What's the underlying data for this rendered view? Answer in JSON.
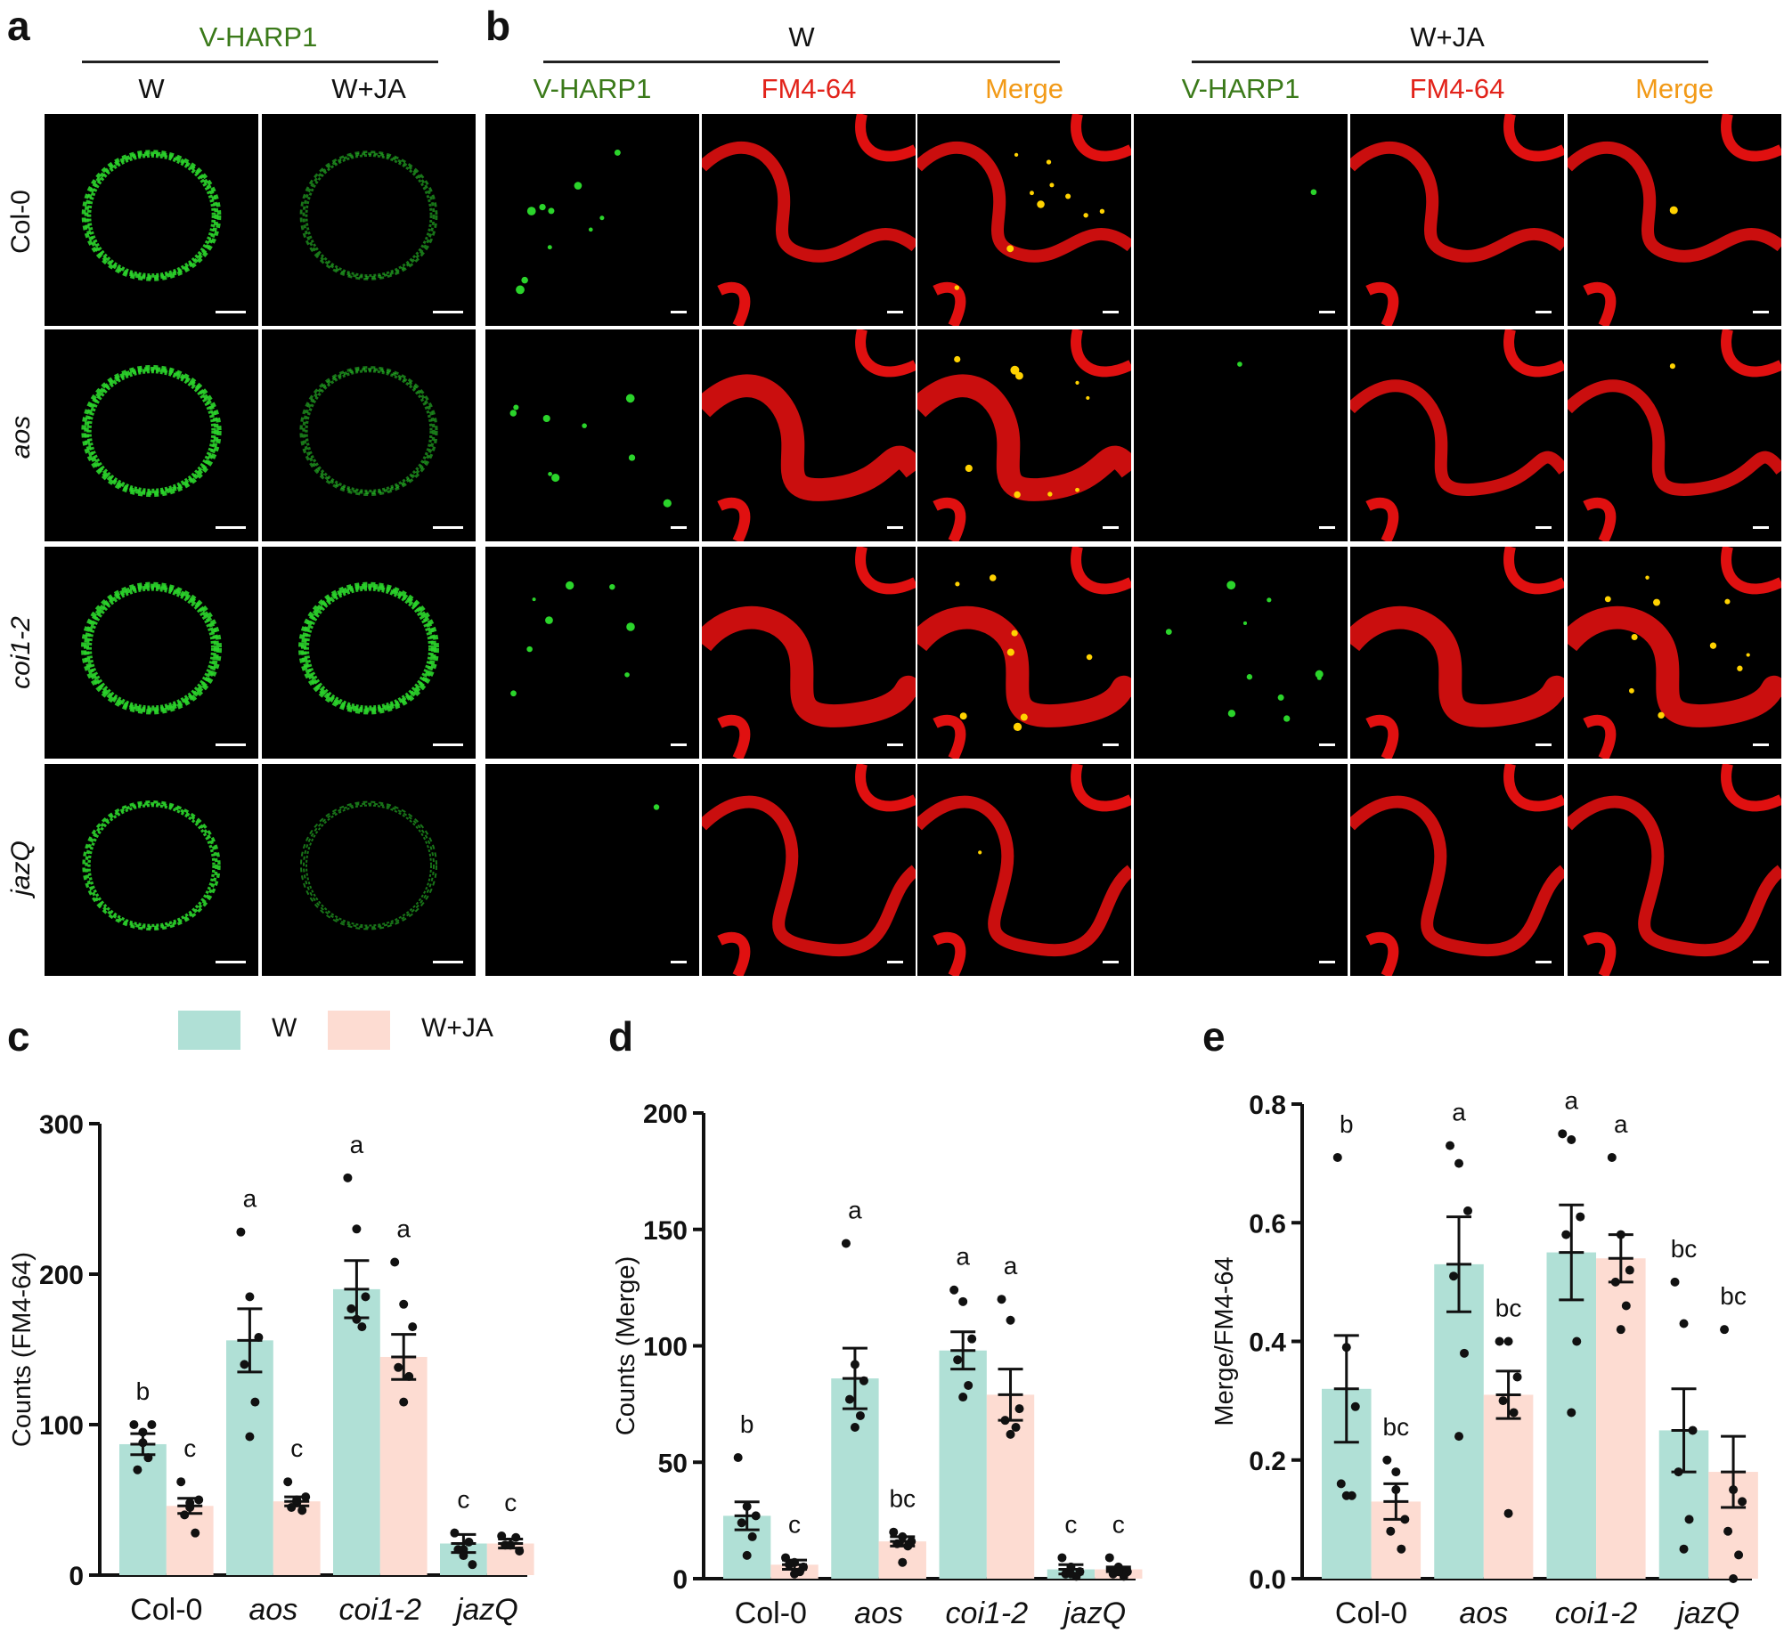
{
  "colors": {
    "green_text": "#3b7a1a",
    "red_text": "#e2231a",
    "orange_text": "#f29a17",
    "w_bar": "#b0e0d6",
    "wja_bar": "#fddcd2",
    "gfp": "#2bd42b",
    "fm": "#e01010",
    "merge_dot": "#ffd200"
  },
  "panel_a": {
    "letter": "a",
    "group_label": "V-HARP1",
    "col_labels": [
      "W",
      "W+JA"
    ]
  },
  "panel_b": {
    "letter": "b",
    "groups": [
      {
        "label": "W",
        "channels": [
          "V-HARP1",
          "FM4-64",
          "Merge"
        ]
      },
      {
        "label": "W+JA",
        "channels": [
          "V-HARP1",
          "FM4-64",
          "Merge"
        ]
      }
    ]
  },
  "row_labels": [
    "Col-0",
    "aos",
    "coi1-2",
    "jazQ"
  ],
  "legend": {
    "w": "W",
    "wja": "W+JA"
  },
  "chart_data": [
    {
      "panel": "c",
      "type": "bar",
      "categories": [
        "Col-0",
        "aos",
        "coi1-2",
        "jazQ"
      ],
      "ylabel": "Counts (FM4-64)",
      "ylim": [
        0,
        300
      ],
      "yticks": [
        0,
        100,
        200,
        300
      ],
      "series": [
        {
          "name": "W",
          "values": [
            87,
            156,
            190,
            21
          ],
          "sem": [
            7,
            21,
            19,
            6
          ],
          "points": [
            [
              100,
              95,
              100,
              70,
              78,
              88
            ],
            [
              228,
              185,
              158,
              140,
              115,
              92
            ],
            [
              264,
              230,
              185,
              177,
              165,
              170
            ],
            [
              28,
              17,
              7,
              17,
              22,
              13
            ]
          ],
          "letters": [
            "b",
            "a",
            "a",
            "c"
          ]
        },
        {
          "name": "W+JA",
          "values": [
            46,
            49,
            145,
            21
          ],
          "sem": [
            5,
            3,
            15,
            3
          ],
          "points": [
            [
              62,
              48,
              50,
              40,
              28,
              45
            ],
            [
              62,
              48,
              52,
              45,
              43,
              50
            ],
            [
              208,
              180,
              165,
              138,
              132,
              115
            ],
            [
              26,
              20,
              16,
              20,
              25,
              20
            ]
          ],
          "letters": [
            "c",
            "c",
            "a",
            "c"
          ]
        }
      ]
    },
    {
      "panel": "d",
      "type": "bar",
      "categories": [
        "Col-0",
        "aos",
        "coi1-2",
        "jazQ"
      ],
      "ylabel": "Counts (Merge)",
      "ylim": [
        0,
        200
      ],
      "yticks": [
        0,
        50,
        100,
        150,
        200
      ],
      "series": [
        {
          "name": "W",
          "values": [
            27,
            86,
            98,
            4
          ],
          "sem": [
            6,
            13,
            8,
            2
          ],
          "points": [
            [
              52,
              31,
              27,
              24,
              18,
              10
            ],
            [
              144,
              92,
              85,
              77,
              70,
              65
            ],
            [
              124,
              119,
              103,
              94,
              83,
              78
            ],
            [
              9,
              5,
              3,
              2,
              1,
              2
            ]
          ],
          "letters": [
            "b",
            "a",
            "a",
            "c"
          ]
        },
        {
          "name": "W+JA",
          "values": [
            6,
            16,
            79,
            4
          ],
          "sem": [
            2,
            2,
            11,
            1
          ],
          "points": [
            [
              9,
              7,
              5,
              6,
              3,
              2
            ],
            [
              20,
              18,
              16,
              15,
              14,
              7
            ],
            [
              120,
              111,
              73,
              68,
              65,
              62
            ],
            [
              9,
              5,
              3,
              2,
              1,
              3
            ]
          ],
          "letters": [
            "c",
            "bc",
            "a",
            "c"
          ]
        }
      ]
    },
    {
      "panel": "e",
      "type": "bar",
      "categories": [
        "Col-0",
        "aos",
        "coi1-2",
        "jazQ"
      ],
      "ylabel": "Merge/FM4-64",
      "ylim": [
        0,
        0.8
      ],
      "yticks": [
        0.0,
        0.2,
        0.4,
        0.6,
        0.8
      ],
      "yticklabels": [
        "0.0",
        "0.2",
        "0.4",
        "0.6",
        "0.8"
      ],
      "series": [
        {
          "name": "W",
          "values": [
            0.32,
            0.53,
            0.55,
            0.25
          ],
          "sem": [
            0.09,
            0.08,
            0.08,
            0.07
          ],
          "points": [
            [
              0.71,
              0.39,
              0.29,
              0.16,
              0.14,
              0.14
            ],
            [
              0.73,
              0.7,
              0.62,
              0.51,
              0.38,
              0.24
            ],
            [
              0.75,
              0.74,
              0.61,
              0.58,
              0.4,
              0.28
            ],
            [
              0.5,
              0.43,
              0.25,
              0.18,
              0.1,
              0.05
            ]
          ],
          "letters": [
            "b",
            "a",
            "a",
            "bc"
          ]
        },
        {
          "name": "W+JA",
          "values": [
            0.13,
            0.31,
            0.54,
            0.18
          ],
          "sem": [
            0.03,
            0.04,
            0.04,
            0.06
          ],
          "points": [
            [
              0.2,
              0.18,
              0.1,
              0.08,
              0.05,
              0.15
            ],
            [
              0.4,
              0.4,
              0.34,
              0.3,
              0.28,
              0.11
            ],
            [
              0.71,
              0.58,
              0.52,
              0.5,
              0.46,
              0.42
            ],
            [
              0.42,
              0.15,
              0.13,
              0.08,
              0.04,
              0.0
            ]
          ],
          "letters": [
            "bc",
            "bc",
            "a",
            "bc"
          ]
        }
      ]
    }
  ]
}
